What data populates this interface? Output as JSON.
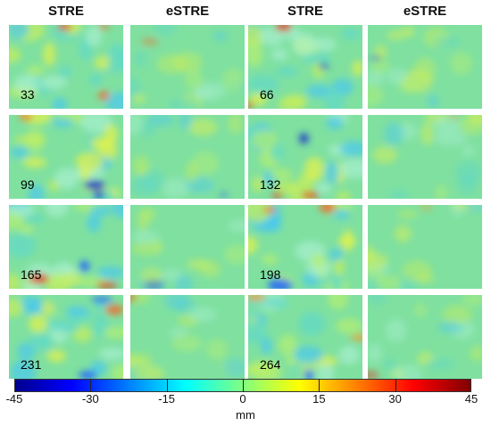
{
  "column_headers": [
    "STRE",
    "eSTRE",
    "STRE",
    "eSTRE"
  ],
  "frame_labels": [
    "33",
    "66",
    "99",
    "132",
    "165",
    "198",
    "231",
    "264"
  ],
  "colorbar": {
    "ticks": [
      "-45",
      "-30",
      "-15",
      "0",
      "15",
      "30",
      "45"
    ],
    "unit": "mm",
    "range": [
      -45,
      45
    ],
    "colors": [
      "#00008f",
      "#0000ff",
      "#0080ff",
      "#00ffff",
      "#80ff80",
      "#ffff00",
      "#ff8000",
      "#ff0000",
      "#800000"
    ]
  },
  "panel_base_color": "#7fe0a0"
}
